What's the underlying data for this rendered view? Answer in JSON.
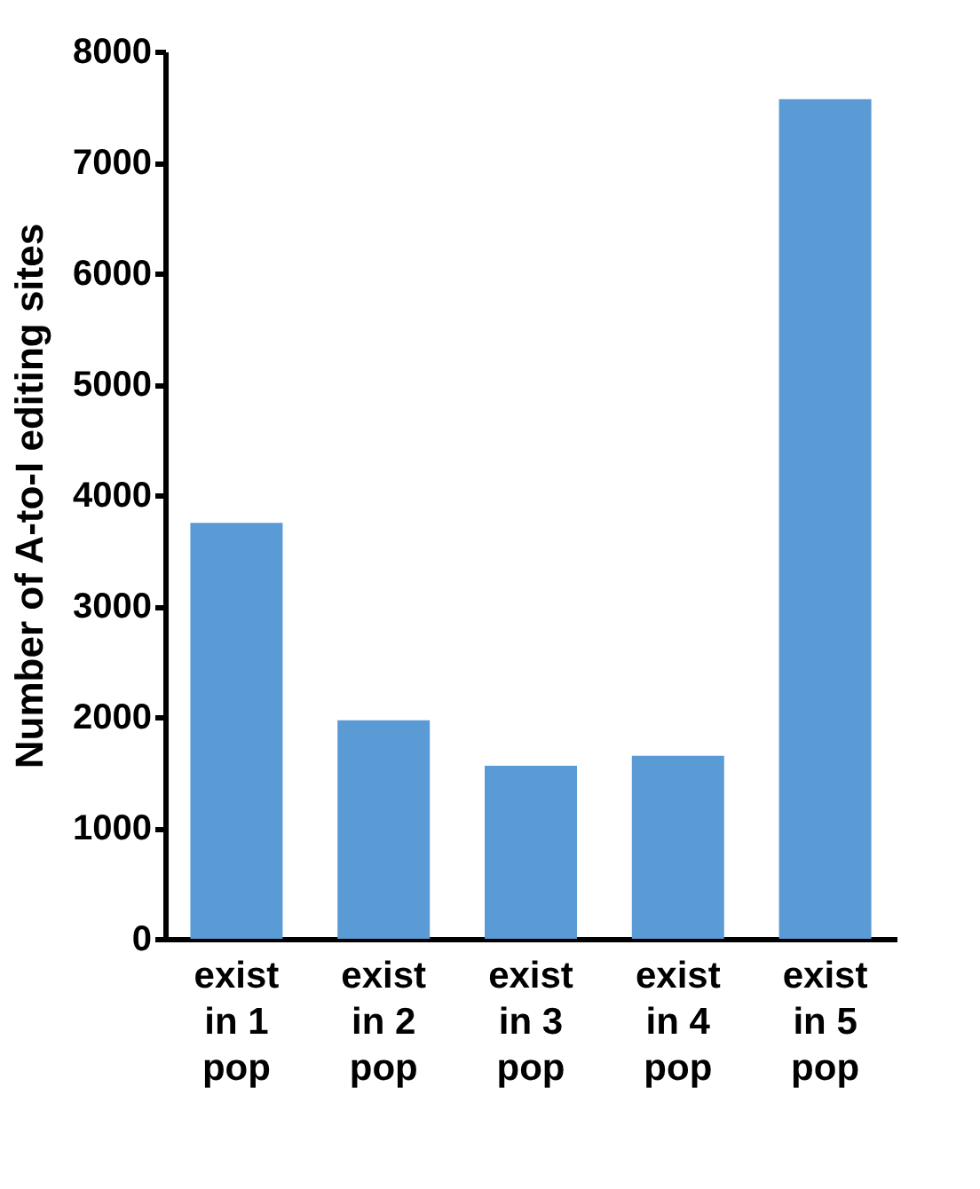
{
  "chart_data": {
    "type": "bar",
    "ylabel": "Number of A-to-I editing sites",
    "categories": [
      "exist\nin 1\npop",
      "exist\nin 2\npop",
      "exist\nin 3\npop",
      "exist\nin 4\npop",
      "exist\nin 5\npop"
    ],
    "values": [
      3750,
      1970,
      1560,
      1650,
      7570
    ],
    "color": "#5b9bd5",
    "ylim": [
      0,
      8000
    ],
    "yticks": [
      0,
      1000,
      2000,
      3000,
      4000,
      5000,
      6000,
      7000,
      8000
    ],
    "grid": false
  }
}
